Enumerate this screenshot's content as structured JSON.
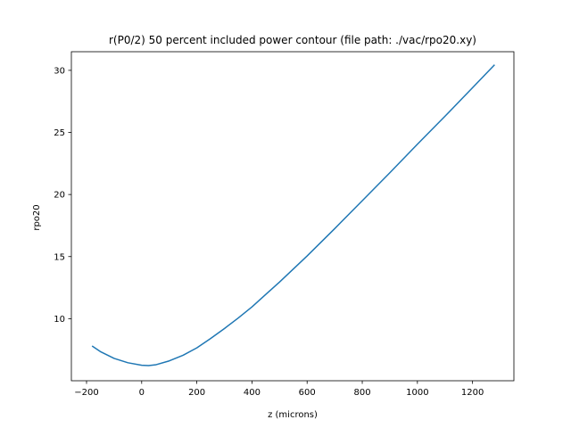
{
  "chart_data": {
    "type": "line",
    "title": "r(P0/2) 50 percent included power contour  (file path: ./vac/rpo20.xy)",
    "xlabel": "z (microns)",
    "ylabel": "rpo20",
    "xlim": [
      -255,
      1350
    ],
    "ylim": [
      5.0,
      31.5
    ],
    "xticks": [
      -200,
      0,
      200,
      400,
      600,
      800,
      1000,
      1200
    ],
    "yticks": [
      10,
      15,
      20,
      25,
      30
    ],
    "grid": false,
    "series": [
      {
        "color": "#1f77b4",
        "x": [
          -180,
          -150,
          -100,
          -50,
          0,
          25,
          50,
          100,
          150,
          200,
          250,
          300,
          350,
          400,
          450,
          500,
          600,
          700,
          800,
          900,
          1000,
          1100,
          1200,
          1280
        ],
        "y": [
          7.8,
          7.35,
          6.8,
          6.45,
          6.25,
          6.22,
          6.28,
          6.6,
          7.05,
          7.65,
          8.4,
          9.2,
          10.05,
          10.95,
          11.95,
          12.95,
          15.05,
          17.25,
          19.5,
          21.75,
          24.05,
          26.3,
          28.6,
          30.45
        ]
      }
    ]
  }
}
